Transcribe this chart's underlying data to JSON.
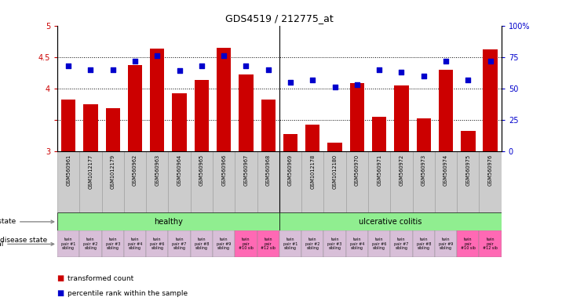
{
  "title": "GDS4519 / 212775_at",
  "sample_ids": [
    "GSM560961",
    "GSM1012177",
    "GSM1012179",
    "GSM560962",
    "GSM560963",
    "GSM560964",
    "GSM560965",
    "GSM560966",
    "GSM560967",
    "GSM560968",
    "GSM560969",
    "GSM1012178",
    "GSM1012180",
    "GSM560970",
    "GSM560971",
    "GSM560972",
    "GSM560973",
    "GSM560974",
    "GSM560975",
    "GSM560976"
  ],
  "bar_values": [
    3.82,
    3.75,
    3.68,
    4.37,
    4.63,
    3.92,
    4.13,
    4.65,
    4.22,
    3.82,
    3.27,
    3.42,
    3.14,
    4.08,
    3.55,
    4.05,
    3.52,
    4.3,
    3.32,
    4.62
  ],
  "dot_values": [
    68,
    65,
    65,
    72,
    76,
    64,
    68,
    76,
    68,
    65,
    55,
    57,
    51,
    53,
    65,
    63,
    60,
    72,
    57,
    72
  ],
  "ylim_left": [
    3.0,
    5.0
  ],
  "ylim_right": [
    0,
    100
  ],
  "yticks_left": [
    3.0,
    3.5,
    4.0,
    4.5,
    5.0
  ],
  "ytick_labels_left": [
    "3",
    "",
    "4",
    "4.5",
    "5"
  ],
  "yticks_right": [
    0,
    25,
    50,
    75,
    100
  ],
  "ytick_labels_right": [
    "0",
    "25",
    "50",
    "75",
    "100%"
  ],
  "hlines": [
    3.5,
    4.0,
    4.5
  ],
  "individual_labels": [
    "twin\npair #1\nsibling",
    "twin\npair #2\nsibling",
    "twin\npair #3\nsibling",
    "twin\npair #4\nsibling",
    "twin\npair #6\nsibling",
    "twin\npair #7\nsibling",
    "twin\npair #8\nsibling",
    "twin\npair #9\nsibling",
    "twin\npair\n#10 sib",
    "twin\npair\n#12 sib",
    "twin\npair #1\nsibling",
    "twin\npair #2\nsibling",
    "twin\npair #3\nsibling",
    "twin\npair #4\nsibling",
    "twin\npair #6\nsibling",
    "twin\npair #7\nsibling",
    "twin\npair #8\nsibling",
    "twin\npair #9\nsibling",
    "twin\npair\n#10 sib",
    "twin\npair\n#12 sib"
  ],
  "individual_colors": [
    "#D8BFD8",
    "#D8BFD8",
    "#D8BFD8",
    "#D8BFD8",
    "#D8BFD8",
    "#D8BFD8",
    "#D8BFD8",
    "#D8BFD8",
    "#FF69B4",
    "#FF69B4",
    "#D8BFD8",
    "#D8BFD8",
    "#D8BFD8",
    "#D8BFD8",
    "#D8BFD8",
    "#D8BFD8",
    "#D8BFD8",
    "#D8BFD8",
    "#FF69B4",
    "#FF69B4"
  ],
  "bar_color": "#CC0000",
  "dot_color": "#0000CC",
  "bg_color": "#FFFFFF",
  "xlabel_bg": "#CCCCCC",
  "xlabel_edge": "#999999",
  "healthy_color": "#90EE90",
  "uc_color": "#90EE90",
  "legend_red": "transformed count",
  "legend_blue": "percentile rank within the sample"
}
